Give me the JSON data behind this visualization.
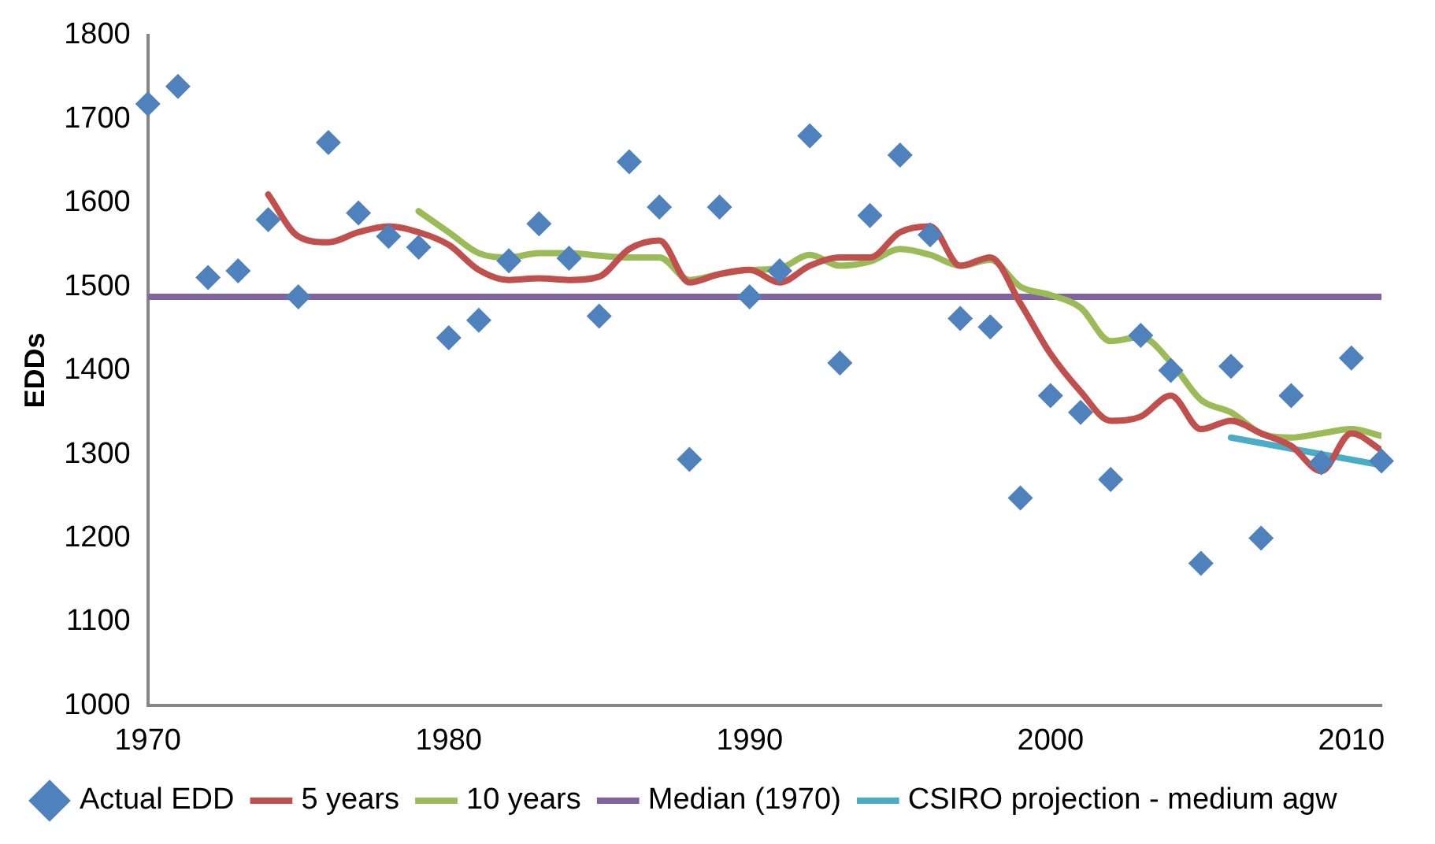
{
  "chart_data": {
    "type": "scatter",
    "ylabel": "EDDs",
    "xlim": [
      1970,
      2011
    ],
    "xticks": [
      1970,
      1980,
      1990,
      2000,
      2010
    ],
    "ylim": [
      1000,
      1800
    ],
    "yticks": [
      1000,
      1100,
      1200,
      1300,
      1400,
      1500,
      1600,
      1700,
      1800
    ],
    "grid": false,
    "legend": "bottom",
    "series": [
      {
        "name": "Actual EDD",
        "marker": "diamond",
        "color": "#4f81bd",
        "x": [
          1970,
          1971,
          1972,
          1973,
          1974,
          1975,
          1976,
          1977,
          1978,
          1979,
          1980,
          1981,
          1982,
          1983,
          1984,
          1985,
          1986,
          1987,
          1988,
          1989,
          1990,
          1991,
          1992,
          1993,
          1994,
          1995,
          1996,
          1997,
          1998,
          1999,
          2000,
          2001,
          2002,
          2003,
          2004,
          2005,
          2006,
          2007,
          2008,
          2009,
          2010,
          2011
        ],
        "values": [
          1718,
          1739,
          1511,
          1519,
          1580,
          1488,
          1672,
          1588,
          1560,
          1547,
          1439,
          1460,
          1531,
          1575,
          1534,
          1465,
          1649,
          1595,
          1294,
          1595,
          1488,
          1519,
          1680,
          1409,
          1585,
          1657,
          1562,
          1462,
          1452,
          1248,
          1370,
          1350,
          1270,
          1442,
          1400,
          1170,
          1405,
          1200,
          1370,
          1290,
          1415,
          1292
        ]
      },
      {
        "name": "5 years",
        "type": "line",
        "color": "#c0504d",
        "x": [
          1974,
          1975,
          1976,
          1977,
          1978,
          1979,
          1980,
          1981,
          1982,
          1983,
          1984,
          1985,
          1986,
          1987,
          1988,
          1989,
          1990,
          1991,
          1992,
          1993,
          1994,
          1995,
          1996,
          1997,
          1998,
          1999,
          2000,
          2001,
          2002,
          2003,
          2004,
          2005,
          2006,
          2007,
          2008,
          2009,
          2010,
          2011
        ],
        "values": [
          1610,
          1560,
          1553,
          1565,
          1572,
          1565,
          1550,
          1520,
          1508,
          1510,
          1508,
          1512,
          1545,
          1555,
          1505,
          1515,
          1520,
          1505,
          1525,
          1535,
          1535,
          1565,
          1572,
          1525,
          1535,
          1480,
          1420,
          1375,
          1340,
          1345,
          1370,
          1330,
          1340,
          1325,
          1310,
          1280,
          1325,
          1305
        ]
      },
      {
        "name": "10 years",
        "type": "line",
        "color": "#9bbb59",
        "x": [
          1979,
          1980,
          1981,
          1982,
          1983,
          1984,
          1985,
          1986,
          1987,
          1988,
          1989,
          1990,
          1991,
          1992,
          1993,
          1994,
          1995,
          1996,
          1997,
          1998,
          1999,
          2000,
          2001,
          2002,
          2003,
          2004,
          2005,
          2006,
          2007,
          2008,
          2009,
          2010,
          2011
        ],
        "values": [
          1590,
          1565,
          1540,
          1535,
          1540,
          1540,
          1537,
          1535,
          1535,
          1508,
          1515,
          1520,
          1522,
          1538,
          1525,
          1530,
          1545,
          1538,
          1525,
          1532,
          1500,
          1490,
          1475,
          1435,
          1440,
          1410,
          1365,
          1350,
          1325,
          1320,
          1325,
          1330,
          1322
        ]
      },
      {
        "name": "Median (1970)",
        "type": "line",
        "color": "#8064a2",
        "x": [
          1970,
          2011
        ],
        "values": [
          1488,
          1488
        ]
      },
      {
        "name": "CSIRO projection - medium agw",
        "type": "line",
        "color": "#4bacc6",
        "x": [
          2006,
          2011
        ],
        "values": [
          1320,
          1287
        ]
      }
    ]
  }
}
